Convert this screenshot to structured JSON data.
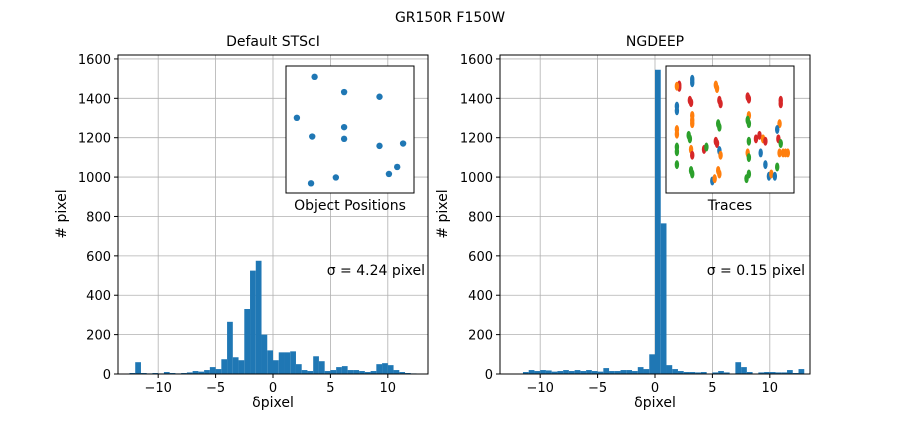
{
  "figure": {
    "title": "GR150R F150W"
  },
  "chart_data": [
    {
      "type": "bar",
      "title": "Default STScI",
      "xlabel": "δpixel",
      "ylabel": "# pixel",
      "xlim": [
        -13.5,
        13.5
      ],
      "ylim": [
        0,
        1620
      ],
      "xticks": [
        -10,
        -5,
        0,
        5,
        10
      ],
      "xtick_labels": [
        "−10",
        "−5",
        "0",
        "5",
        "10"
      ],
      "yticks": [
        0,
        200,
        400,
        600,
        800,
        1000,
        1200,
        1400,
        1600
      ],
      "ytick_labels": [
        "0",
        "200",
        "400",
        "600",
        "800",
        "1000",
        "1200",
        "1400",
        "1600"
      ],
      "grid": true,
      "bin_width": 0.5,
      "bins": [
        {
          "x": -12.5,
          "y": 5
        },
        {
          "x": -12.0,
          "y": 60
        },
        {
          "x": -11.5,
          "y": 5
        },
        {
          "x": -11.0,
          "y": 3
        },
        {
          "x": -10.5,
          "y": 5
        },
        {
          "x": -10.0,
          "y": 3
        },
        {
          "x": -9.5,
          "y": 10
        },
        {
          "x": -9.0,
          "y": 5
        },
        {
          "x": -8.5,
          "y": 3
        },
        {
          "x": -8.0,
          "y": 5
        },
        {
          "x": -7.5,
          "y": 8
        },
        {
          "x": -7.0,
          "y": 15
        },
        {
          "x": -6.5,
          "y": 12
        },
        {
          "x": -6.0,
          "y": 20
        },
        {
          "x": -5.5,
          "y": 35
        },
        {
          "x": -5.0,
          "y": 25
        },
        {
          "x": -4.5,
          "y": 75
        },
        {
          "x": -4.0,
          "y": 265
        },
        {
          "x": -3.5,
          "y": 85
        },
        {
          "x": -3.0,
          "y": 70
        },
        {
          "x": -2.5,
          "y": 330
        },
        {
          "x": -2.0,
          "y": 525
        },
        {
          "x": -1.5,
          "y": 575
        },
        {
          "x": -1.0,
          "y": 200
        },
        {
          "x": -0.5,
          "y": 120
        },
        {
          "x": 0.0,
          "y": 70
        },
        {
          "x": 0.5,
          "y": 110
        },
        {
          "x": 1.0,
          "y": 110
        },
        {
          "x": 1.5,
          "y": 115
        },
        {
          "x": 2.0,
          "y": 50
        },
        {
          "x": 2.5,
          "y": 20
        },
        {
          "x": 3.0,
          "y": 15
        },
        {
          "x": 3.5,
          "y": 90
        },
        {
          "x": 4.0,
          "y": 65
        },
        {
          "x": 4.5,
          "y": 15
        },
        {
          "x": 5.0,
          "y": 20
        },
        {
          "x": 5.5,
          "y": 35
        },
        {
          "x": 6.0,
          "y": 40
        },
        {
          "x": 6.5,
          "y": 20
        },
        {
          "x": 7.0,
          "y": 20
        },
        {
          "x": 7.5,
          "y": 15
        },
        {
          "x": 8.0,
          "y": 10
        },
        {
          "x": 8.5,
          "y": 15
        },
        {
          "x": 9.0,
          "y": 50
        },
        {
          "x": 9.5,
          "y": 55
        },
        {
          "x": 10.0,
          "y": 45
        },
        {
          "x": 10.5,
          "y": 20
        },
        {
          "x": 11.0,
          "y": 10
        },
        {
          "x": 11.5,
          "y": 5
        },
        {
          "x": 12.0,
          "y": 3
        }
      ],
      "annotation": "σ = 4.24 pixel",
      "inset": {
        "label": "Object Positions",
        "xlim": [
          0,
          1
        ],
        "ylim": [
          0,
          1
        ],
        "color": "#1f77b4",
        "points": [
          {
            "x": 0.2,
            "y": 0.95
          },
          {
            "x": 0.45,
            "y": 0.82
          },
          {
            "x": 0.75,
            "y": 0.78
          },
          {
            "x": 0.05,
            "y": 0.6
          },
          {
            "x": 0.45,
            "y": 0.52
          },
          {
            "x": 0.18,
            "y": 0.44
          },
          {
            "x": 0.45,
            "y": 0.42
          },
          {
            "x": 0.95,
            "y": 0.38
          },
          {
            "x": 0.75,
            "y": 0.36
          },
          {
            "x": 0.9,
            "y": 0.18
          },
          {
            "x": 0.83,
            "y": 0.12
          },
          {
            "x": 0.38,
            "y": 0.09
          },
          {
            "x": 0.17,
            "y": 0.04
          }
        ]
      }
    },
    {
      "type": "bar",
      "title": "NGDEEP",
      "xlabel": "δpixel",
      "ylabel": "# pixel",
      "xlim": [
        -13.5,
        13.5
      ],
      "ylim": [
        0,
        1620
      ],
      "xticks": [
        -10,
        -5,
        0,
        5,
        10
      ],
      "xtick_labels": [
        "−10",
        "−5",
        "0",
        "5",
        "10"
      ],
      "yticks": [
        0,
        200,
        400,
        600,
        800,
        1000,
        1200,
        1400,
        1600
      ],
      "ytick_labels": [
        "0",
        "200",
        "400",
        "600",
        "800",
        "1000",
        "1200",
        "1400",
        "1600"
      ],
      "grid": true,
      "bin_width": 0.5,
      "bins": [
        {
          "x": -11.5,
          "y": 10
        },
        {
          "x": -11.0,
          "y": 20
        },
        {
          "x": -10.5,
          "y": 15
        },
        {
          "x": -10.0,
          "y": 20
        },
        {
          "x": -9.5,
          "y": 18
        },
        {
          "x": -9.0,
          "y": 12
        },
        {
          "x": -8.5,
          "y": 15
        },
        {
          "x": -8.0,
          "y": 20
        },
        {
          "x": -7.5,
          "y": 15
        },
        {
          "x": -7.0,
          "y": 20
        },
        {
          "x": -6.5,
          "y": 15
        },
        {
          "x": -6.0,
          "y": 20
        },
        {
          "x": -5.5,
          "y": 15
        },
        {
          "x": -5.0,
          "y": 12
        },
        {
          "x": -4.5,
          "y": 30
        },
        {
          "x": -4.0,
          "y": 15
        },
        {
          "x": -3.5,
          "y": 15
        },
        {
          "x": -3.0,
          "y": 20
        },
        {
          "x": -2.5,
          "y": 20
        },
        {
          "x": -2.0,
          "y": 15
        },
        {
          "x": -1.5,
          "y": 35
        },
        {
          "x": -1.0,
          "y": 25
        },
        {
          "x": -0.5,
          "y": 100
        },
        {
          "x": 0.0,
          "y": 1545
        },
        {
          "x": 0.5,
          "y": 765
        },
        {
          "x": 1.0,
          "y": 45
        },
        {
          "x": 1.5,
          "y": 25
        },
        {
          "x": 2.0,
          "y": 15
        },
        {
          "x": 2.5,
          "y": 10
        },
        {
          "x": 3.0,
          "y": 10
        },
        {
          "x": 3.5,
          "y": 8
        },
        {
          "x": 4.0,
          "y": 10
        },
        {
          "x": 5.0,
          "y": 8
        },
        {
          "x": 5.5,
          "y": 15
        },
        {
          "x": 6.0,
          "y": 8
        },
        {
          "x": 7.0,
          "y": 60
        },
        {
          "x": 7.5,
          "y": 35
        },
        {
          "x": 8.0,
          "y": 10
        },
        {
          "x": 9.0,
          "y": 8
        },
        {
          "x": 9.5,
          "y": 10
        },
        {
          "x": 10.0,
          "y": 10
        },
        {
          "x": 10.5,
          "y": 8
        },
        {
          "x": 11.0,
          "y": 8
        },
        {
          "x": 11.5,
          "y": 20
        },
        {
          "x": 12.0,
          "y": 5
        },
        {
          "x": 12.5,
          "y": 25
        }
      ],
      "annotation": "σ = 0.15 pixel",
      "inset": {
        "label": "Traces",
        "xlim": [
          0,
          1
        ],
        "ylim": [
          0,
          1
        ],
        "colors": [
          "#1f77b4",
          "#ff7f0e",
          "#2ca02c",
          "#d62728"
        ],
        "points": [
          {
            "x": 0.07,
            "y": 0.88,
            "c": 3
          },
          {
            "x": 0.07,
            "y": 0.86,
            "c": 3
          },
          {
            "x": 0.05,
            "y": 0.87,
            "c": 1
          },
          {
            "x": 0.18,
            "y": 0.93,
            "c": 0
          },
          {
            "x": 0.18,
            "y": 0.9,
            "c": 0
          },
          {
            "x": 0.16,
            "y": 0.75,
            "c": 3
          },
          {
            "x": 0.17,
            "y": 0.73,
            "c": 3
          },
          {
            "x": 0.18,
            "y": 0.62,
            "c": 1
          },
          {
            "x": 0.18,
            "y": 0.58,
            "c": 1
          },
          {
            "x": 0.18,
            "y": 0.55,
            "c": 1
          },
          {
            "x": 0.15,
            "y": 0.45,
            "c": 2
          },
          {
            "x": 0.16,
            "y": 0.42,
            "c": 2
          },
          {
            "x": 0.17,
            "y": 0.33,
            "c": 1
          },
          {
            "x": 0.18,
            "y": 0.28,
            "c": 3
          },
          {
            "x": 0.17,
            "y": 0.15,
            "c": 2
          },
          {
            "x": 0.18,
            "y": 0.12,
            "c": 2
          },
          {
            "x": 0.05,
            "y": 0.7,
            "c": 0
          },
          {
            "x": 0.05,
            "y": 0.66,
            "c": 0
          },
          {
            "x": 0.05,
            "y": 0.5,
            "c": 1
          },
          {
            "x": 0.05,
            "y": 0.46,
            "c": 1
          },
          {
            "x": 0.05,
            "y": 0.35,
            "c": 2
          },
          {
            "x": 0.05,
            "y": 0.31,
            "c": 2
          },
          {
            "x": 0.05,
            "y": 0.2,
            "c": 2
          },
          {
            "x": 0.38,
            "y": 0.88,
            "c": 1
          },
          {
            "x": 0.39,
            "y": 0.85,
            "c": 1
          },
          {
            "x": 0.41,
            "y": 0.75,
            "c": 3
          },
          {
            "x": 0.42,
            "y": 0.72,
            "c": 3
          },
          {
            "x": 0.4,
            "y": 0.55,
            "c": 2
          },
          {
            "x": 0.41,
            "y": 0.52,
            "c": 2
          },
          {
            "x": 0.38,
            "y": 0.4,
            "c": 3
          },
          {
            "x": 0.39,
            "y": 0.38,
            "c": 3
          },
          {
            "x": 0.41,
            "y": 0.32,
            "c": 0
          },
          {
            "x": 0.42,
            "y": 0.28,
            "c": 1
          },
          {
            "x": 0.4,
            "y": 0.15,
            "c": 1
          },
          {
            "x": 0.41,
            "y": 0.12,
            "c": 1
          },
          {
            "x": 0.35,
            "y": 0.06,
            "c": 0
          },
          {
            "x": 0.37,
            "y": 0.08,
            "c": 1
          },
          {
            "x": 0.28,
            "y": 0.33,
            "c": 3
          },
          {
            "x": 0.3,
            "y": 0.35,
            "c": 2
          },
          {
            "x": 0.65,
            "y": 0.78,
            "c": 3
          },
          {
            "x": 0.66,
            "y": 0.76,
            "c": 3
          },
          {
            "x": 0.66,
            "y": 0.62,
            "c": 1
          },
          {
            "x": 0.65,
            "y": 0.58,
            "c": 2
          },
          {
            "x": 0.66,
            "y": 0.55,
            "c": 2
          },
          {
            "x": 0.66,
            "y": 0.4,
            "c": 2
          },
          {
            "x": 0.65,
            "y": 0.3,
            "c": 1
          },
          {
            "x": 0.66,
            "y": 0.26,
            "c": 2
          },
          {
            "x": 0.66,
            "y": 0.12,
            "c": 2
          },
          {
            "x": 0.64,
            "y": 0.08,
            "c": 2
          },
          {
            "x": 0.72,
            "y": 0.42,
            "c": 3
          },
          {
            "x": 0.75,
            "y": 0.45,
            "c": 3
          },
          {
            "x": 0.78,
            "y": 0.42,
            "c": 1
          },
          {
            "x": 0.8,
            "y": 0.4,
            "c": 3
          },
          {
            "x": 0.76,
            "y": 0.3,
            "c": 0
          },
          {
            "x": 0.8,
            "y": 0.2,
            "c": 0
          },
          {
            "x": 0.83,
            "y": 0.1,
            "c": 0
          },
          {
            "x": 0.85,
            "y": 0.12,
            "c": 1
          },
          {
            "x": 0.93,
            "y": 0.75,
            "c": 3
          },
          {
            "x": 0.93,
            "y": 0.72,
            "c": 3
          },
          {
            "x": 0.92,
            "y": 0.55,
            "c": 1
          },
          {
            "x": 0.9,
            "y": 0.5,
            "c": 0
          },
          {
            "x": 0.91,
            "y": 0.42,
            "c": 3
          },
          {
            "x": 0.93,
            "y": 0.38,
            "c": 2
          },
          {
            "x": 0.92,
            "y": 0.3,
            "c": 1
          },
          {
            "x": 0.95,
            "y": 0.3,
            "c": 1
          },
          {
            "x": 0.9,
            "y": 0.18,
            "c": 2
          },
          {
            "x": 0.88,
            "y": 0.1,
            "c": 0
          },
          {
            "x": 0.99,
            "y": 0.3,
            "c": 1
          },
          {
            "x": 0.97,
            "y": 0.3,
            "c": 1
          }
        ]
      }
    }
  ]
}
